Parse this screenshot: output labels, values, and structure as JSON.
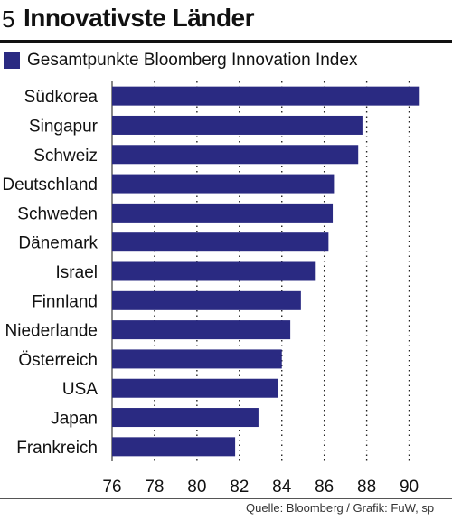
{
  "header": {
    "number": "5",
    "title": "Innovativste Länder"
  },
  "legend": {
    "label": "Gesamtpunkte Bloomberg Innovation Index",
    "color": "#2a2a82"
  },
  "source": "Quelle: Bloomberg / Grafik: FuW, sp",
  "chart_data": {
    "type": "bar",
    "orientation": "horizontal",
    "categories": [
      "Südkorea",
      "Singapur",
      "Schweiz",
      "Deutschland",
      "Schweden",
      "Dänemark",
      "Israel",
      "Finnland",
      "Niederlande",
      "Österreich",
      "USA",
      "Japan",
      "Frankreich"
    ],
    "series": [
      {
        "name": "Gesamtpunkte Bloomberg Innovation Index",
        "values": [
          90.5,
          87.8,
          87.6,
          86.5,
          86.4,
          86.2,
          85.6,
          84.9,
          84.4,
          84.0,
          83.8,
          82.9,
          81.8
        ]
      }
    ],
    "xlim": [
      76,
      91
    ],
    "xticks": [
      76,
      78,
      80,
      82,
      84,
      86,
      88,
      90
    ],
    "grid": "vertical dotted",
    "bar_color": "#2a2a82"
  }
}
